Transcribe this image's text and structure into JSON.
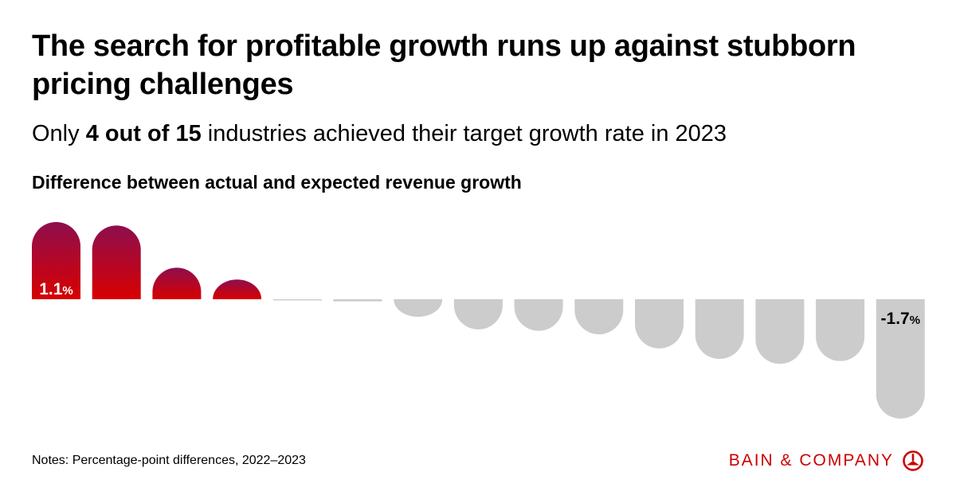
{
  "header": {
    "title": "The search for profitable growth runs up against stubborn pricing challenges",
    "subtitle_prefix": "Only ",
    "subtitle_highlight": "4 out of 15",
    "subtitle_suffix": " industries achieved their target growth rate in 2023",
    "chart_heading": "Difference between actual and expected revenue growth"
  },
  "footer": {
    "notes": "Notes: Percentage-point differences, 2022–2023",
    "brand": "BAIN & COMPANY"
  },
  "colors": {
    "positive_top": "#8e0e4e",
    "positive_bottom": "#d80000",
    "negative": "#cccccc",
    "brand": "#cc0000"
  },
  "chart_data": {
    "type": "bar",
    "title": "Difference between actual and expected revenue growth",
    "unit": "%",
    "values": [
      1.1,
      1.05,
      0.45,
      0.28,
      -0.01,
      -0.03,
      -0.25,
      -0.43,
      -0.45,
      -0.5,
      -0.7,
      -0.85,
      -0.92,
      -0.88,
      -1.7
    ],
    "data_labels": [
      {
        "index": 0,
        "number": "1.1",
        "suffix": "%"
      },
      {
        "index": 14,
        "number": "-1.7",
        "suffix": "%"
      }
    ],
    "ylim": [
      -1.7,
      1.1
    ],
    "grid": false,
    "legend": "none"
  }
}
